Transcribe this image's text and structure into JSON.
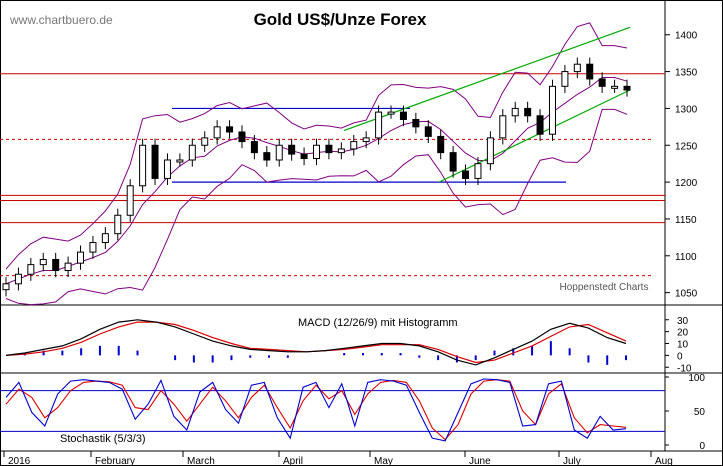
{
  "header": {
    "website": "www.chartbuero.de",
    "title": "Gold US$/Unze Forex"
  },
  "credit": "Hoppenstedt Charts",
  "colors": {
    "price_up": "#ffffff",
    "price_down": "#000000",
    "bollinger": "#800080",
    "channel": "#00aa00",
    "level_solid": "#cc0000",
    "level_dotted": "#cc0000",
    "range_line": "#0000cc",
    "macd": "#000000",
    "signal": "#dd0000",
    "histogram": "#0000cc",
    "stoch_k": "#0000cc",
    "stoch_d": "#dd0000",
    "stoch_level": "#0000cc"
  },
  "chart_data": [
    {
      "type": "candlestick",
      "title": "Gold US$/Unze Forex",
      "x_labels": [
        "2016",
        "February",
        "March",
        "April",
        "May",
        "June",
        "July",
        "Aug"
      ],
      "y_ticks": [
        1050,
        1100,
        1150,
        1200,
        1250,
        1300,
        1350,
        1400
      ],
      "ylim": [
        1040,
        1420
      ],
      "close": [
        1062,
        1075,
        1088,
        1095,
        1080,
        1090,
        1105,
        1118,
        1130,
        1155,
        1195,
        1250,
        1205,
        1230,
        1230,
        1250,
        1260,
        1275,
        1268,
        1255,
        1240,
        1230,
        1250,
        1238,
        1232,
        1250,
        1240,
        1245,
        1255,
        1260,
        1295,
        1295,
        1285,
        1275,
        1262,
        1240,
        1215,
        1205,
        1225,
        1260,
        1290,
        1300,
        1290,
        1265,
        1330,
        1350,
        1360,
        1340,
        1330,
        1330,
        1325
      ],
      "solid_levels": [
        1347,
        1182,
        1175,
        1145
      ],
      "dotted_levels": [
        1258,
        1073
      ],
      "range_lines": [
        {
          "x1": "mid-February",
          "x2": "early May",
          "y": 1300
        },
        {
          "x1": "mid-February",
          "x2": "early July",
          "y": 1200
        }
      ],
      "channel_lines": [
        {
          "from": [
            "May",
            1270
          ],
          "to": [
            "Aug",
            1410
          ]
        },
        {
          "from": [
            "June",
            1200
          ],
          "to": [
            "Aug",
            1325
          ]
        }
      ],
      "bollinger_bands": true
    },
    {
      "type": "line",
      "title": "MACD (12/26/9) mit Histogramm",
      "y_ticks": [
        30,
        20,
        10,
        0,
        -10
      ],
      "ylim": [
        -14,
        34
      ],
      "series": [
        {
          "name": "MACD",
          "values": [
            0,
            2,
            5,
            8,
            14,
            22,
            28,
            30,
            28,
            24,
            18,
            12,
            8,
            5,
            4,
            3,
            3,
            4,
            6,
            8,
            10,
            10,
            8,
            3,
            -4,
            -8,
            -2,
            5,
            12,
            22,
            27,
            23,
            15,
            10
          ]
        },
        {
          "name": "Signal",
          "values": [
            0,
            1,
            3,
            6,
            11,
            18,
            24,
            28,
            28,
            26,
            21,
            15,
            10,
            6,
            5,
            4,
            3,
            4,
            5,
            7,
            9,
            9,
            9,
            5,
            -1,
            -6,
            -4,
            2,
            8,
            16,
            24,
            26,
            19,
            12
          ]
        },
        {
          "name": "Histogramm",
          "values": [
            0,
            1,
            2,
            2,
            3,
            4,
            4,
            2,
            0,
            -2,
            -3,
            -3,
            -2,
            -1,
            -1,
            -1,
            0,
            0,
            1,
            1,
            1,
            1,
            -1,
            -2,
            -3,
            -2,
            2,
            3,
            4,
            6,
            3,
            -3,
            -4,
            -2
          ]
        }
      ]
    },
    {
      "type": "line",
      "title": "Stochastik (5/3/3)",
      "y_ticks": [
        100,
        50,
        0
      ],
      "ylim": [
        0,
        100
      ],
      "levels": [
        80,
        20
      ],
      "series": [
        {
          "name": "%K",
          "values": [
            70,
            92,
            48,
            28,
            75,
            94,
            96,
            94,
            92,
            82,
            38,
            60,
            95,
            42,
            22,
            78,
            92,
            52,
            32,
            88,
            92,
            40,
            10,
            85,
            92,
            55,
            90,
            28,
            92,
            96,
            94,
            88,
            48,
            10,
            6,
            48,
            90,
            97,
            96,
            92,
            28,
            30,
            90,
            94,
            22,
            10,
            42,
            22,
            24
          ]
        },
        {
          "name": "%D",
          "values": [
            60,
            82,
            70,
            40,
            55,
            80,
            92,
            94,
            93,
            88,
            55,
            52,
            80,
            60,
            35,
            60,
            85,
            65,
            40,
            70,
            88,
            55,
            25,
            65,
            88,
            68,
            80,
            45,
            75,
            92,
            95,
            92,
            65,
            25,
            8,
            30,
            75,
            94,
            96,
            94,
            50,
            30,
            75,
            90,
            40,
            18,
            30,
            28,
            26
          ]
        }
      ]
    }
  ]
}
